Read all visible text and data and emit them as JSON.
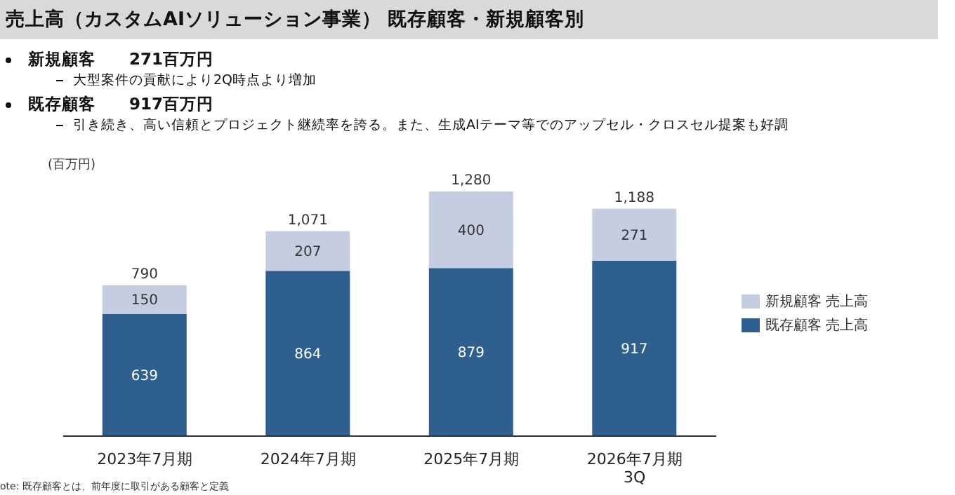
{
  "chart_data": {
    "type": "bar",
    "title": "売上高（カスタムAIソリューション事業） 既存顧客・新規顧客別",
    "ylabel": "(百万円)",
    "stacked": true,
    "data_labels": true,
    "legend": "right",
    "categories": [
      "2023年7月期",
      "2024年7月期",
      "2025年7月期",
      "2026年7月期\n3Q"
    ],
    "series": [
      {
        "name": "既存顧客 売上高",
        "color": "#2e5f8f",
        "values": [
          639,
          864,
          879,
          917
        ]
      },
      {
        "name": "新規顧客 売上高",
        "color": "#c5cde0",
        "values": [
          150,
          207,
          400,
          271
        ]
      }
    ],
    "totals": [
      "790",
      "1,071",
      "1,280",
      "1,188"
    ],
    "annotations": [
      "新規顧客　　271百万円",
      "大型案件の貢献により2Q時点より増加",
      "既存顧客　　917百万円",
      "引き続き、高い信頼とプロジェクト継続率を誇る。また、生成AIテーマ等でのアップセル・クロスセル提案も好調",
      "ote: 既存顧客とは、前年度に取引がある顧客と定義"
    ]
  }
}
